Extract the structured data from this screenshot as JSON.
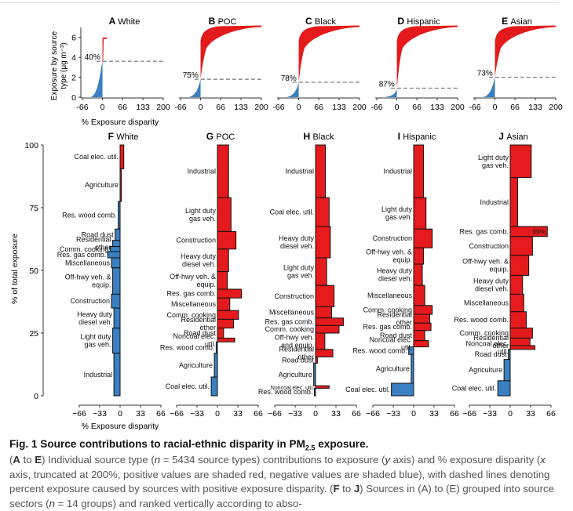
{
  "figure": {
    "top_ylabel": [
      "Exposure by source",
      "type (μg m⁻³)"
    ],
    "top_xlabel": "% Exposure disparity",
    "bottom_ylabel": "% of total exposure",
    "bottom_xlabel": "% Exposure disparity",
    "colors": {
      "positive": "#e41a1c",
      "negative": "#3a7fc1",
      "dash": "#888888"
    }
  },
  "caption": {
    "title": "Fig. 1 Source contributions to racial-ethnic disparity in PM2.5 exposure.",
    "title_main": "Fig. 1 Source contributions to racial-ethnic disparity in PM",
    "title_sub": "2.5",
    "title_end": " exposure.",
    "body": "(A to E) Individual source type (n = 5434 source types) contributions to exposure (y axis) and % exposure disparity (x axis, truncated at 200%, positive values are shaded red, negative values are shaded blue), with dashed lines denoting percent exposure caused by sources with positive exposure disparity. (F to J) Sources in (A) to (E) grouped into source sectors (n = 14 groups) and ranked vertically according to abso-",
    "body_parts": [
      "(",
      "A",
      " to ",
      "E",
      ") Individual source type (",
      "n",
      " = 5434 source types) contributions to exposure (",
      "y",
      " axis) and % exposure disparity (",
      "x",
      " axis, truncated at 200%, positive values are shaded red, negative values are shaded blue), with dashed lines denoting percent exposure caused by sources with positive exposure disparity. (",
      "F",
      " to ",
      "J",
      ") Sources in (A) to (E) grouped into source sectors (",
      "n",
      " = 14 groups) and ranked vertically according to abso-"
    ]
  },
  "chart_data": [
    {
      "panel": "A",
      "group": "White",
      "type": "area",
      "xlim": [
        -66,
        200
      ],
      "xticks": [
        "-66",
        "0",
        "66",
        "133",
        "200"
      ],
      "ylim": [
        0,
        7
      ],
      "yticks": [
        "0",
        "2",
        "4",
        "6"
      ],
      "dashed_level": 3.6,
      "dashed_label": "40%",
      "neg_top": 3.6,
      "pos_max_x": 15,
      "total": 6.0,
      "shape": "white"
    },
    {
      "panel": "B",
      "group": "POC",
      "type": "area",
      "xlim": [
        -66,
        200
      ],
      "xticks": [
        "-66",
        "0",
        "66",
        "133",
        "200"
      ],
      "ylim": [
        0,
        7
      ],
      "yticks": [],
      "dashed_level": 1.8,
      "dashed_label": "75%",
      "neg_top": 1.8,
      "pos_max_x": 200,
      "total": 7.2,
      "shape": "poc"
    },
    {
      "panel": "C",
      "group": "Black",
      "type": "area",
      "xlim": [
        -66,
        200
      ],
      "xticks": [
        "-66",
        "0",
        "66",
        "133",
        "200"
      ],
      "ylim": [
        0,
        7
      ],
      "yticks": [],
      "dashed_level": 1.5,
      "dashed_label": "78%",
      "neg_top": 1.5,
      "pos_max_x": 200,
      "total": 7.2,
      "shape": "black"
    },
    {
      "panel": "D",
      "group": "Hispanic",
      "type": "area",
      "xlim": [
        -66,
        200
      ],
      "xticks": [
        "-66",
        "0",
        "66",
        "133",
        "200"
      ],
      "ylim": [
        0,
        7
      ],
      "yticks": [],
      "dashed_level": 0.9,
      "dashed_label": "87%",
      "neg_top": 0.9,
      "pos_max_x": 200,
      "total": 7.2,
      "shape": "hisp"
    },
    {
      "panel": "E",
      "group": "Asian",
      "type": "area",
      "xlim": [
        -66,
        200
      ],
      "xticks": [
        "-66",
        "0",
        "66",
        "133",
        "200"
      ],
      "ylim": [
        0,
        7
      ],
      "yticks": [],
      "dashed_level": 2.0,
      "dashed_label": "73%",
      "neg_top": 2.0,
      "pos_max_x": 200,
      "total": 7.2,
      "shape": "asian"
    },
    {
      "panel": "F",
      "group": "White",
      "type": "bar",
      "xlim": [
        -66,
        66
      ],
      "xticks": [
        "−66",
        "−33",
        "0",
        "33",
        "66"
      ],
      "ylim": [
        0,
        100
      ],
      "yticks": [
        "0",
        "25",
        "50",
        "75",
        "100"
      ],
      "sectors": [
        {
          "label": "Coal elec. util.",
          "start": 90.5,
          "end": 100,
          "value": 6
        },
        {
          "label": "Agriculture",
          "start": 77.5,
          "end": 90.5,
          "value": 2
        },
        {
          "label": "Res. wood comb.",
          "start": 66.5,
          "end": 77.5,
          "value": -3
        },
        {
          "label": "Road dust",
          "start": 62,
          "end": 66.5,
          "value": -8
        },
        {
          "label": "Residential other",
          "start": 59.5,
          "end": 62,
          "value": -12
        },
        {
          "label": "Comm. cooking",
          "start": 57.5,
          "end": 59.5,
          "value": -16
        },
        {
          "label": "Res. gas comb.",
          "start": 55,
          "end": 57.5,
          "value": -20
        },
        {
          "label": "Miscellaneous",
          "start": 51,
          "end": 55,
          "value": -14
        },
        {
          "label": "Off-hwy veh. & equip.",
          "start": 40.5,
          "end": 51,
          "value": -12
        },
        {
          "label": "Construction",
          "start": 35,
          "end": 40.5,
          "value": -14
        },
        {
          "label": "Heavy duty diesel veh.",
          "start": 27,
          "end": 35,
          "value": -10
        },
        {
          "label": "Light duty gas veh.",
          "start": 17,
          "end": 27,
          "value": -12
        },
        {
          "label": "Industrial",
          "start": 0,
          "end": 17,
          "value": -10
        }
      ]
    },
    {
      "panel": "G",
      "group": "POC",
      "type": "bar",
      "xlim": [
        -66,
        66
      ],
      "xticks": [
        "−66",
        "−33",
        "0",
        "33",
        "66"
      ],
      "ylim": [
        0,
        100
      ],
      "yticks": [],
      "sectors": [
        {
          "label": "Industrial",
          "start": 79,
          "end": 100,
          "value": 18
        },
        {
          "label": "Light duty gas veh.",
          "start": 65.5,
          "end": 79,
          "value": 22
        },
        {
          "label": "Construction",
          "start": 58.5,
          "end": 65.5,
          "value": 30
        },
        {
          "label": "Heavy duty diesel veh.",
          "start": 49.5,
          "end": 58.5,
          "value": 18
        },
        {
          "label": "Off-hwy veh. & equip.",
          "start": 42.5,
          "end": 49.5,
          "value": 16
        },
        {
          "label": "Res. gas comb.",
          "start": 39,
          "end": 42.5,
          "value": 39
        },
        {
          "label": "Miscellaneous",
          "start": 34,
          "end": 39,
          "value": 20
        },
        {
          "label": "Comm. cooking",
          "start": 30.5,
          "end": 34,
          "value": 34
        },
        {
          "label": "Residential other",
          "start": 27,
          "end": 30.5,
          "value": 26
        },
        {
          "label": "Road dust",
          "start": 23,
          "end": 27,
          "value": 10
        },
        {
          "label": "Noncoal elec. util.",
          "start": 21.5,
          "end": 23,
          "value": 28
        },
        {
          "label": "Res. wood comb.",
          "start": 17,
          "end": 21.5,
          "value": -2
        },
        {
          "label": "Agriculture",
          "start": 7.5,
          "end": 17,
          "value": -5
        },
        {
          "label": "Coal elec. util.",
          "start": 0,
          "end": 7.5,
          "value": -10
        }
      ]
    },
    {
      "panel": "H",
      "group": "Black",
      "type": "bar",
      "xlim": [
        -66,
        66
      ],
      "xticks": [
        "−66",
        "−33",
        "0",
        "33",
        "66"
      ],
      "ylim": [
        0,
        100
      ],
      "yticks": [],
      "sectors": [
        {
          "label": "Industrial",
          "start": 79,
          "end": 100,
          "value": 16
        },
        {
          "label": "Coal elec. util.",
          "start": 67.5,
          "end": 79,
          "value": 22
        },
        {
          "label": "Heavy duty diesel veh.",
          "start": 55,
          "end": 67.5,
          "value": 24
        },
        {
          "label": "Light duty gas veh.",
          "start": 44,
          "end": 55,
          "value": 18
        },
        {
          "label": "Construction",
          "start": 35.5,
          "end": 44,
          "value": 30
        },
        {
          "label": "Miscellaneous",
          "start": 31,
          "end": 35.5,
          "value": 26
        },
        {
          "label": "Res. gas comb.",
          "start": 28,
          "end": 31,
          "value": 45
        },
        {
          "label": "Comm. cooking",
          "start": 25,
          "end": 28,
          "value": 38
        },
        {
          "label": "Off-hwy veh. and equip.",
          "start": 18.5,
          "end": 25,
          "value": 15
        },
        {
          "label": "Residential other",
          "start": 15.5,
          "end": 18.5,
          "value": 28
        },
        {
          "label": "Road dust",
          "start": 13,
          "end": 15.5,
          "value": 3
        },
        {
          "label": "Agriculture",
          "start": 4,
          "end": 13,
          "value": -3
        },
        {
          "label": "Noncoal elec. util.",
          "start": 3,
          "end": 4,
          "value": 22
        },
        {
          "label": "Res. wood comb.",
          "start": 0,
          "end": 3,
          "value": -2
        }
      ]
    },
    {
      "panel": "I",
      "group": "Hispanic",
      "type": "bar",
      "xlim": [
        -66,
        66
      ],
      "xticks": [
        "−66",
        "−33",
        "0",
        "33",
        "66"
      ],
      "ylim": [
        0,
        100
      ],
      "yticks": [],
      "sectors": [
        {
          "label": "Industrial",
          "start": 79,
          "end": 100,
          "value": 16
        },
        {
          "label": "Light duty gas veh.",
          "start": 66.5,
          "end": 79,
          "value": 20
        },
        {
          "label": "Construction",
          "start": 59,
          "end": 66.5,
          "value": 30
        },
        {
          "label": "Off-hwy veh. & equip.",
          "start": 52.5,
          "end": 59,
          "value": 16
        },
        {
          "label": "Heavy duty diesel veh.",
          "start": 44,
          "end": 52.5,
          "value": 14
        },
        {
          "label": "Miscellaneous",
          "start": 36,
          "end": 44,
          "value": 18
        },
        {
          "label": "Comm. cooking",
          "start": 32.5,
          "end": 36,
          "value": 30
        },
        {
          "label": "Residential other",
          "start": 29,
          "end": 32.5,
          "value": 26
        },
        {
          "label": "Res. gas comb.",
          "start": 26,
          "end": 29,
          "value": 28
        },
        {
          "label": "Road dust",
          "start": 22,
          "end": 26,
          "value": 18
        },
        {
          "label": "Noncoal elec. util.",
          "start": 19.5,
          "end": 22,
          "value": 24
        },
        {
          "label": "Res. wood comb.",
          "start": 16.5,
          "end": 19.5,
          "value": -8
        },
        {
          "label": "Agriculture",
          "start": 5,
          "end": 16.5,
          "value": -4
        },
        {
          "label": "Coal elec. util.",
          "start": 0,
          "end": 5,
          "value": -36
        }
      ]
    },
    {
      "panel": "J",
      "group": "Asian",
      "type": "bar",
      "xlim": [
        -66,
        66
      ],
      "xticks": [
        "−66",
        "−33",
        "0",
        "33",
        "66"
      ],
      "ylim": [
        0,
        100
      ],
      "yticks": [],
      "sectors": [
        {
          "label": "Light duty gas veh.",
          "start": 87,
          "end": 100,
          "value": 34
        },
        {
          "label": "Industrial",
          "start": 67.5,
          "end": 87,
          "value": 12
        },
        {
          "label": "Res. gas comb.",
          "start": 63.5,
          "end": 67.5,
          "value": 60,
          "annotation": "99%"
        },
        {
          "label": "Construction",
          "start": 56,
          "end": 63.5,
          "value": 36
        },
        {
          "label": "Off-hwy veh. & equip.",
          "start": 48,
          "end": 56,
          "value": 30
        },
        {
          "label": "Heavy duty diesel veh.",
          "start": 40.5,
          "end": 48,
          "value": 20
        },
        {
          "label": "Miscellaneous",
          "start": 33.5,
          "end": 40.5,
          "value": 22
        },
        {
          "label": "Res. wood comb.",
          "start": 27,
          "end": 33.5,
          "value": 26
        },
        {
          "label": "Comm. cooking",
          "start": 23,
          "end": 27,
          "value": 36
        },
        {
          "label": "Residential other",
          "start": 20,
          "end": 23,
          "value": 32
        },
        {
          "label": "Noncoal elec. util.",
          "start": 18.5,
          "end": 20,
          "value": 40
        },
        {
          "label": "Road dust",
          "start": 14.5,
          "end": 18.5,
          "value": -3
        },
        {
          "label": "Agriculture",
          "start": 6,
          "end": 14.5,
          "value": -10
        },
        {
          "label": "Coal elec. util.",
          "start": 0,
          "end": 6,
          "value": -20
        }
      ]
    }
  ]
}
